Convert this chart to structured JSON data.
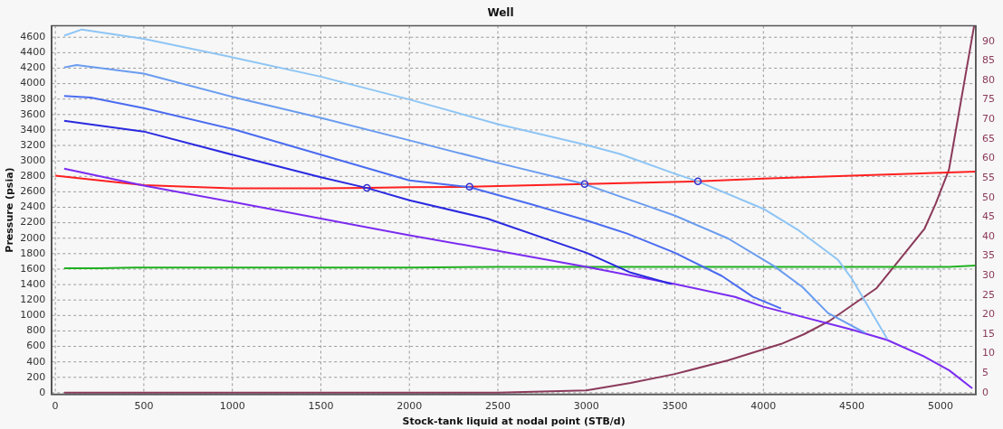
{
  "chart_data": {
    "type": "line",
    "title": "Well",
    "xlabel": "Stock-tank liquid at nodal point (STB/d)",
    "ylabel": "Pressure (psia)",
    "xlim": [
      -20,
      5200
    ],
    "xticks": [
      0,
      500,
      1000,
      1500,
      2000,
      2500,
      3000,
      3500,
      4000,
      4500,
      5000
    ],
    "ylim": [
      -20,
      4750
    ],
    "yticks": [
      0,
      200,
      400,
      600,
      800,
      1000,
      1200,
      1400,
      1600,
      1800,
      2000,
      2200,
      2400,
      2600,
      2800,
      3000,
      3200,
      3400,
      3600,
      3800,
      4000,
      4200,
      4400,
      4600
    ],
    "y2lim": [
      -0.4,
      94
    ],
    "y2ticks": [
      0,
      5,
      10,
      15,
      20,
      25,
      30,
      35,
      40,
      45,
      50,
      55,
      60,
      65,
      70,
      75,
      80,
      85,
      90
    ],
    "grid": true,
    "legend": false,
    "marker": "none",
    "line_style": "solid",
    "series": [
      {
        "color": "#8ec5f5",
        "x": [
          50,
          150,
          500,
          1000,
          1500,
          2000,
          2500,
          3000,
          3190,
          3500,
          3630,
          4000,
          4200,
          4420,
          4500,
          4700
        ],
        "values": [
          4620,
          4700,
          4580,
          4340,
          4090,
          3795,
          3476,
          3207,
          3090,
          2834,
          2735,
          2380,
          2100,
          1723,
          1474,
          694
        ]
      },
      {
        "color": "#6a9cf0",
        "x": [
          50,
          120,
          500,
          1000,
          1500,
          2000,
          2500,
          2990,
          3320,
          3500,
          3800,
          4060,
          4220,
          4365,
          4575
        ],
        "values": [
          4210,
          4240,
          4130,
          3829,
          3557,
          3266,
          2974,
          2700,
          2437,
          2292,
          1997,
          1639,
          1369,
          1031,
          775
        ]
      },
      {
        "color": "#4a6cf0",
        "x": [
          50,
          200,
          500,
          1000,
          1500,
          2000,
          2340,
          2690,
          3000,
          3230,
          3500,
          3765,
          3940,
          4100
        ],
        "values": [
          3840,
          3820,
          3683,
          3413,
          3080,
          2747,
          2660,
          2437,
          2230,
          2060,
          1811,
          1512,
          1241,
          1090
        ]
      },
      {
        "color": "#2a2ae0",
        "x": [
          50,
          500,
          1000,
          1500,
          1760,
          2000,
          2440,
          3000,
          3250,
          3480
        ],
        "values": [
          3520,
          3380,
          3080,
          2789,
          2650,
          2490,
          2254,
          1811,
          1555,
          1406
        ]
      },
      {
        "color": "#7b2cf0",
        "x": [
          50,
          500,
          1000,
          1500,
          2000,
          2500,
          3000,
          3500,
          3840,
          4000,
          4500,
          4700,
          4900,
          5050,
          5180
        ],
        "values": [
          2900,
          2680,
          2470,
          2254,
          2037,
          1837,
          1630,
          1406,
          1241,
          1113,
          816,
          682,
          478,
          289,
          57
        ]
      },
      {
        "color": "#ff2020",
        "x": [
          0,
          500,
          1000,
          1500,
          1760,
          2000,
          2340,
          2990,
          3630,
          4000,
          4500,
          5200
        ],
        "values": [
          2810,
          2685,
          2644,
          2645,
          2650,
          2660,
          2665,
          2700,
          2735,
          2770,
          2810,
          2861
        ]
      },
      {
        "color": "#20b020",
        "x": [
          50,
          250,
          450,
          2000,
          2500,
          5050,
          5200
        ],
        "values": [
          1610,
          1610,
          1620,
          1620,
          1630,
          1630,
          1645
        ]
      },
      {
        "color": "#8b3a5a",
        "axis": "y2",
        "x": [
          50,
          2500,
          3000,
          3250,
          3500,
          3800,
          4100,
          4230,
          4370,
          4640,
          4910,
          4973,
          5048,
          5190
        ],
        "values": [
          0,
          0,
          0.6,
          2.5,
          4.8,
          8.3,
          12.5,
          15,
          18.3,
          26.8,
          42,
          48.4,
          57.1,
          93.9
        ]
      },
      {
        "type": "scatter",
        "marker": "circle",
        "color": "#3030d0",
        "x": [
          1760,
          2340,
          2990,
          3630
        ],
        "values": [
          2650,
          2665,
          2700,
          2735
        ]
      }
    ]
  }
}
